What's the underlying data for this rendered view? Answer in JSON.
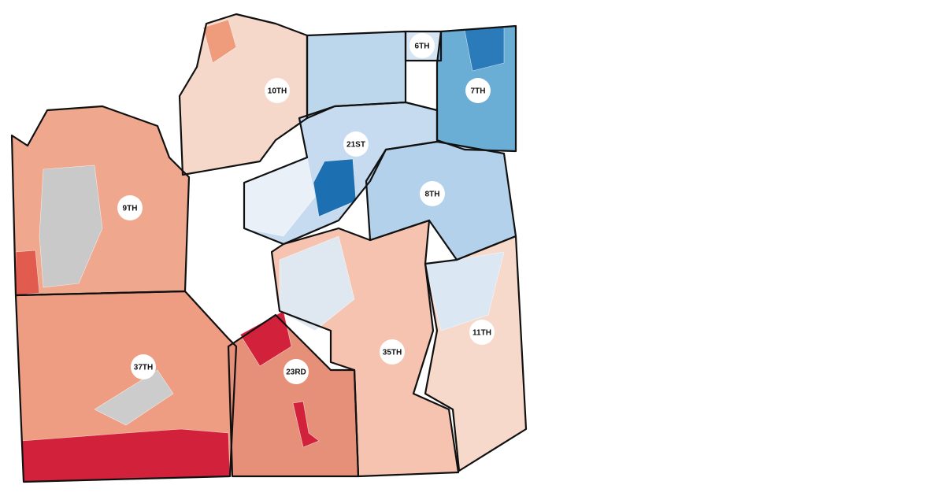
{
  "districts": [
    {
      "label": "10TH"
    },
    {
      "label": "6TH"
    },
    {
      "label": "7TH"
    },
    {
      "label": "21ST"
    },
    {
      "label": "8TH"
    },
    {
      "label": "9TH"
    },
    {
      "label": "37TH"
    },
    {
      "label": "23RD"
    },
    {
      "label": "35TH"
    },
    {
      "label": "11TH"
    }
  ]
}
